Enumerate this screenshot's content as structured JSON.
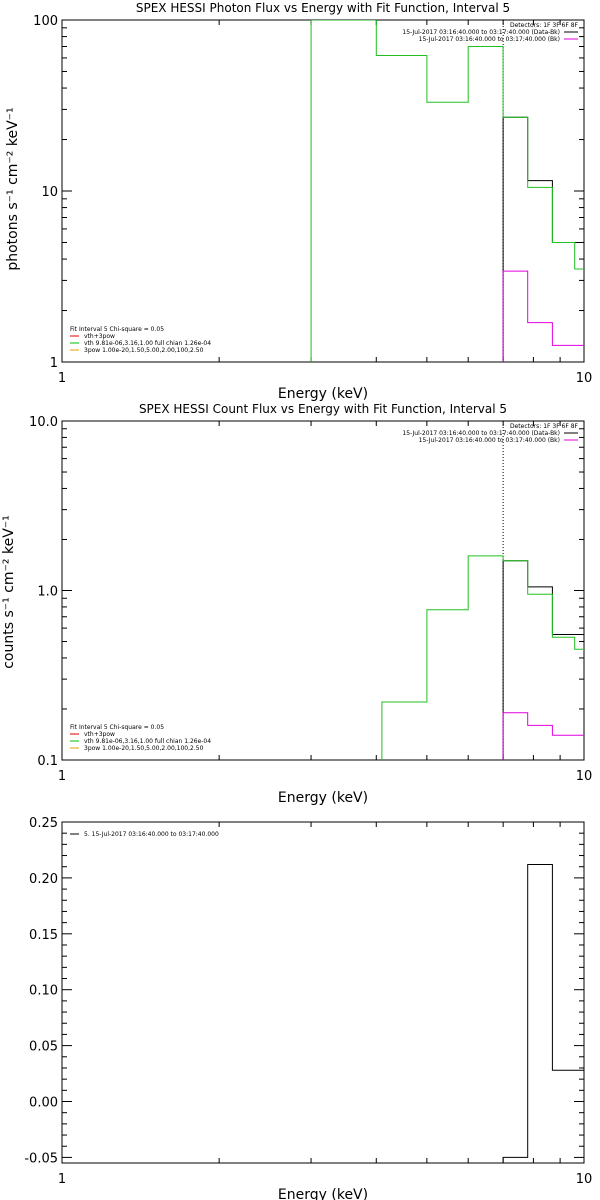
{
  "chart_data": [
    {
      "type": "line",
      "title": "SPEX HESSI Photon Flux vs Energy with Fit Function, Interval 5",
      "xlabel": "Energy (keV)",
      "ylabel": "photons s⁻¹ cm⁻² keV⁻¹",
      "xscale": "log",
      "yscale": "log",
      "xlim": [
        1,
        10
      ],
      "ylim": [
        1,
        100
      ],
      "x_ticks": [
        "1",
        "10"
      ],
      "y_ticks": [
        {
          "value": 1,
          "label": "1"
        },
        {
          "value": 10,
          "label": "10"
        },
        {
          "value": 100,
          "label": "100"
        }
      ],
      "legend_topright": [
        {
          "text": "Detectors: 1F 3F 6F 8F",
          "color": ""
        },
        {
          "text": "15-Jul-2017 03:16:40.000 to 03:17:40.000 (Data-Bk)",
          "color": "#000000"
        },
        {
          "text": "15-Jul-2017 03:16:40.000 to 03:17:40.000 (Bk)",
          "color": "#e000e0"
        }
      ],
      "legend_bottomleft": [
        {
          "text": "Fit Interval 5   Chi-square = 0.05",
          "color": ""
        },
        {
          "text": "vth+3pow",
          "color": "#e00000"
        },
        {
          "text": "vth 9.81e-06,3.16,1.00  full chian 1.26e-04",
          "color": "#00c000"
        },
        {
          "text": "3pow 1.00e-20,1.50,5.00,2.00,100,2.50",
          "color": "#e0a000"
        }
      ],
      "marker_x": 7,
      "series": [
        {
          "color": "#000000",
          "edges": [
            7,
            7.8,
            8.7,
            9.6,
            10
          ],
          "values": [
            27,
            11.5,
            5,
            5
          ]
        },
        {
          "color": "#e000e0",
          "edges": [
            7,
            7.8,
            8.7,
            9.6,
            10
          ],
          "values": [
            3.4,
            1.7,
            1.25,
            1.25
          ]
        },
        {
          "color": "#20c020",
          "edges": [
            3,
            4,
            5,
            6,
            7,
            7.8,
            8.7,
            9.6,
            10
          ],
          "values": [
            100,
            62,
            33,
            70,
            27,
            10.5,
            5,
            3.5
          ]
        }
      ]
    },
    {
      "type": "line",
      "title": "SPEX HESSI Count Flux vs Energy with Fit Function, Interval 5",
      "xlabel": "Energy (keV)",
      "ylabel": "counts s⁻¹ cm⁻² keV⁻¹",
      "xscale": "log",
      "yscale": "log",
      "xlim": [
        1,
        10
      ],
      "ylim": [
        0.1,
        10
      ],
      "x_ticks": [
        "1",
        "10"
      ],
      "y_ticks": [
        {
          "value": 0.1,
          "label": "0.1"
        },
        {
          "value": 1,
          "label": "1.0"
        },
        {
          "value": 10,
          "label": "10.0"
        }
      ],
      "legend_topright": [
        {
          "text": "Detectors: 1F 3F 6F 8F",
          "color": ""
        },
        {
          "text": "15-Jul-2017 03:16:40.000 to 03:17:40.000 (Data-Bk)",
          "color": "#000000"
        },
        {
          "text": "15-Jul-2017 03:16:40.000 to 03:17:40.000 (Bk)",
          "color": "#e000e0"
        }
      ],
      "legend_bottomleft": [
        {
          "text": "Fit Interval 5   Chi-square = 0.05",
          "color": ""
        },
        {
          "text": "vth+3pow",
          "color": "#e00000"
        },
        {
          "text": "vth 9.81e-06,3.16,1.00  full chian 1.26e-04",
          "color": "#00c000"
        },
        {
          "text": "3pow 1.00e-20,1.50,5.00,2.00,100,2.50",
          "color": "#e0a000"
        }
      ],
      "marker_x": 7,
      "series": [
        {
          "color": "#000000",
          "edges": [
            7,
            7.8,
            8.7,
            9.6,
            10
          ],
          "values": [
            1.5,
            1.05,
            0.55,
            0.55
          ]
        },
        {
          "color": "#e000e0",
          "edges": [
            7,
            7.8,
            8.7,
            9.6,
            10
          ],
          "values": [
            0.19,
            0.16,
            0.14,
            0.14
          ]
        },
        {
          "color": "#20c020",
          "edges": [
            4.1,
            5,
            6,
            7,
            7.8,
            8.7,
            9.6,
            10
          ],
          "values": [
            0.22,
            0.77,
            1.6,
            1.5,
            0.95,
            0.53,
            0.45
          ]
        }
      ]
    },
    {
      "type": "line",
      "title": "",
      "xlabel": "Energy (keV)",
      "ylabel": "",
      "xscale": "log",
      "yscale": "linear",
      "xlim": [
        1,
        10
      ],
      "ylim": [
        -0.055,
        0.25
      ],
      "x_ticks": [
        "1",
        "10"
      ],
      "y_ticks": [
        {
          "value": 0.25,
          "label": "0.25"
        },
        {
          "value": 0.2,
          "label": "0.20"
        },
        {
          "value": 0.15,
          "label": "0.15"
        },
        {
          "value": 0.1,
          "label": "0.10"
        },
        {
          "value": 0.05,
          "label": "0.05"
        },
        {
          "value": 0,
          "label": "0.00"
        },
        {
          "value": -0.05,
          "label": "-0.05"
        }
      ],
      "legend_topleft": [
        {
          "text": "5. 15-Jul-2017 03:16:40.000 to 03:17:40.000",
          "color": "#000000"
        }
      ],
      "series": [
        {
          "color": "#000000",
          "edges": [
            7,
            7.8,
            8.7,
            9.6,
            10
          ],
          "values": [
            -0.05,
            0.212,
            0.028,
            0.028
          ]
        }
      ]
    }
  ]
}
